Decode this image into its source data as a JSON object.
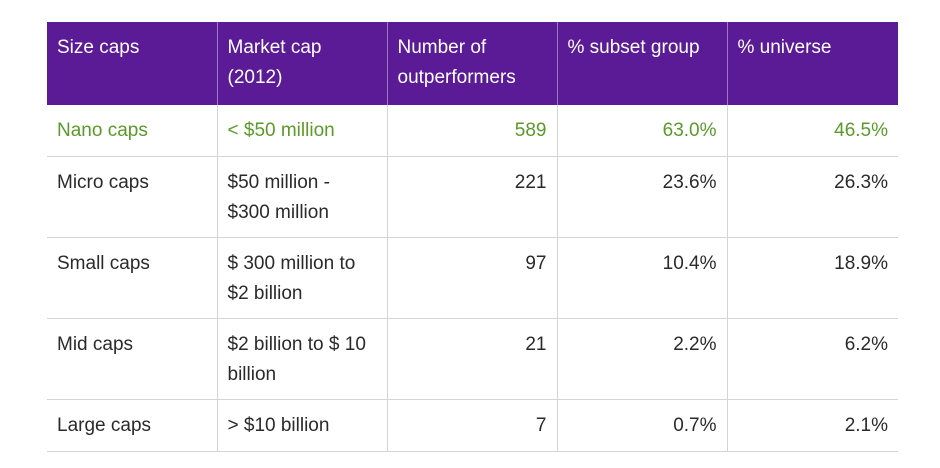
{
  "table": {
    "headers": [
      "Size caps",
      "Market cap (2012)",
      "Number of outperformers",
      "% subset group",
      "% universe"
    ],
    "rows": [
      {
        "size": "Nano caps",
        "market_cap": "< $50 million",
        "outperformers": "589",
        "subset": "63.0%",
        "universe": "46.5%"
      },
      {
        "size": "Micro caps",
        "market_cap": "$50 million - $300 million",
        "outperformers": "221",
        "subset": "23.6%",
        "universe": "26.3%"
      },
      {
        "size": "Small caps",
        "market_cap": "$ 300 million to $2 billion",
        "outperformers": "97",
        "subset": "10.4%",
        "universe": "18.9%"
      },
      {
        "size": "Mid caps",
        "market_cap": "$2 billion to $ 10 billion",
        "outperformers": "21",
        "subset": "2.2%",
        "universe": "6.2%"
      },
      {
        "size": "Large caps",
        "market_cap": "> $10 billion",
        "outperformers": "7",
        "subset": "0.7%",
        "universe": "2.1%"
      }
    ]
  },
  "colors": {
    "header_background": "#5b1a96",
    "header_text": "#ffffff",
    "highlight_text": "#5a9a2a",
    "body_text": "#2a2a2a",
    "grid_line": "#d4d4d4"
  }
}
